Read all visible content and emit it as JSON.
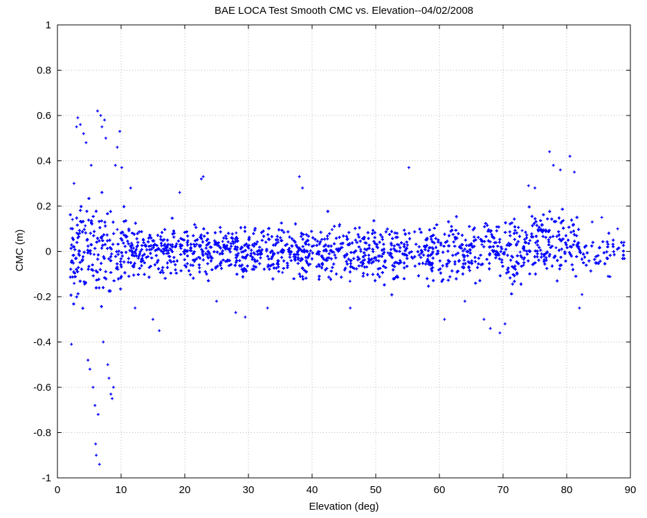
{
  "chart_data": {
    "type": "scatter",
    "title": "BAE LOCA Test Smooth CMC vs. Elevation--04/02/2008",
    "xlabel": "Elevation (deg)",
    "ylabel": "CMC (m)",
    "xlim": [
      0,
      90
    ],
    "ylim": [
      -1,
      1
    ],
    "xticks": [
      "0",
      "10",
      "20",
      "30",
      "40",
      "50",
      "60",
      "70",
      "80",
      "90"
    ],
    "yticks": [
      "1",
      "0.8",
      "0.6",
      "0.4",
      "0.2",
      "0",
      "-0.2",
      "-0.4",
      "-0.6",
      "-0.8",
      "-1"
    ],
    "grid": true,
    "marker": "+",
    "series_color": "#0000ff",
    "series": [
      {
        "points": [
          [
            2.2,
            -0.41
          ],
          [
            2.6,
            0.3
          ],
          [
            3.0,
            0.55
          ],
          [
            3.2,
            0.59
          ],
          [
            3.6,
            0.56
          ],
          [
            4.1,
            0.52
          ],
          [
            4.5,
            0.48
          ],
          [
            4.8,
            -0.48
          ],
          [
            5.1,
            -0.52
          ],
          [
            5.3,
            0.38
          ],
          [
            5.6,
            -0.6
          ],
          [
            5.9,
            -0.68
          ],
          [
            6.0,
            -0.85
          ],
          [
            6.1,
            -0.9
          ],
          [
            6.3,
            0.62
          ],
          [
            6.4,
            -0.72
          ],
          [
            6.6,
            -0.94
          ],
          [
            6.8,
            0.6
          ],
          [
            7.0,
            0.55
          ],
          [
            7.2,
            -0.4
          ],
          [
            7.4,
            0.58
          ],
          [
            7.6,
            0.5
          ],
          [
            7.9,
            -0.5
          ],
          [
            8.1,
            -0.56
          ],
          [
            8.4,
            -0.63
          ],
          [
            8.6,
            -0.65
          ],
          [
            8.8,
            -0.6
          ],
          [
            9.1,
            0.38
          ],
          [
            9.4,
            0.46
          ],
          [
            9.8,
            0.53
          ],
          [
            10.1,
            0.37
          ],
          [
            11.5,
            0.28
          ],
          [
            12.2,
            -0.25
          ],
          [
            15.0,
            -0.3
          ],
          [
            16.0,
            -0.35
          ],
          [
            19.2,
            0.26
          ],
          [
            22.6,
            0.32
          ],
          [
            22.9,
            0.33
          ],
          [
            25.0,
            -0.22
          ],
          [
            28.0,
            -0.27
          ],
          [
            29.5,
            -0.29
          ],
          [
            33.0,
            -0.25
          ],
          [
            38.0,
            0.33
          ],
          [
            38.5,
            0.28
          ],
          [
            46.0,
            -0.25
          ],
          [
            55.2,
            0.37
          ],
          [
            60.8,
            -0.3
          ],
          [
            64.0,
            -0.22
          ],
          [
            67.0,
            -0.3
          ],
          [
            68.0,
            -0.34
          ],
          [
            69.5,
            -0.36
          ],
          [
            70.3,
            -0.32
          ],
          [
            74.0,
            0.29
          ],
          [
            75.0,
            0.28
          ],
          [
            77.3,
            0.44
          ],
          [
            77.9,
            0.38
          ],
          [
            79.0,
            0.36
          ],
          [
            80.5,
            0.42
          ],
          [
            81.2,
            0.35
          ],
          [
            82.0,
            -0.25
          ],
          [
            82.4,
            -0.19
          ],
          [
            84.0,
            0.13
          ],
          [
            85.5,
            0.15
          ],
          [
            86.5,
            -0.11
          ],
          [
            88.0,
            0.1
          ],
          [
            89.0,
            0.04
          ]
        ]
      }
    ]
  }
}
